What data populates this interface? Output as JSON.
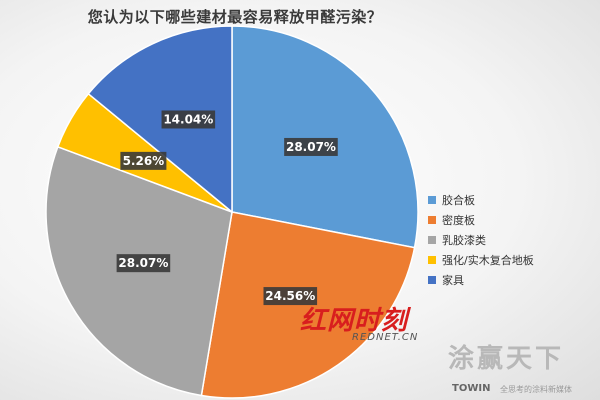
{
  "chart_data": {
    "type": "pie",
    "title": "您认为以下哪些建材最容易释放甲醛污染？",
    "slices": [
      {
        "label": "胶合板",
        "value": 28.07,
        "display": "28.07%",
        "color": "#5b9bd5"
      },
      {
        "label": "密度板",
        "value": 24.56,
        "display": "24.56%",
        "color": "#ed7d31"
      },
      {
        "label": "乳胶漆类",
        "value": 28.07,
        "display": "28.07%",
        "color": "#a5a5a5"
      },
      {
        "label": "强化/实木复合地板",
        "value": 5.26,
        "display": "5.26%",
        "color": "#ffc000"
      },
      {
        "label": "家具",
        "value": 14.04,
        "display": "14.04%",
        "color": "#4472c4"
      }
    ],
    "legend_position": "right"
  },
  "watermarks": {
    "rednet_logo": "红网时刻",
    "rednet_domain": "REDNET.CN",
    "brand_logo": "涂赢天下",
    "brand_en": "TOWIN",
    "brand_tagline": "全思考的涂料新媒体"
  }
}
